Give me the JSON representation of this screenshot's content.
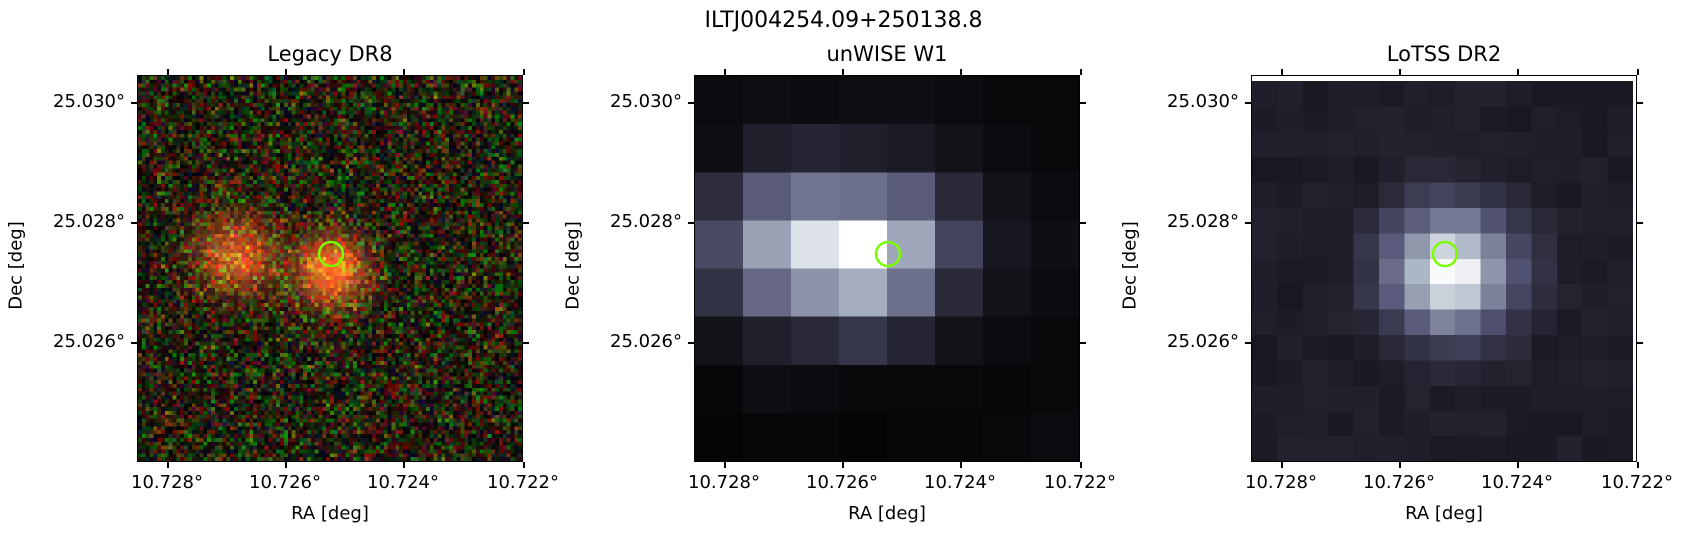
{
  "figure": {
    "title": "ILTJ004254.09+250138.8",
    "panels": [
      {
        "title": "Legacy DR8",
        "xlabel": "RA [deg]",
        "ylabel": "Dec [deg]",
        "xticks": [
          "10.728°",
          "10.726°",
          "10.724°",
          "10.722°"
        ],
        "yticks": [
          "25.030°",
          "25.028°",
          "25.026°"
        ],
        "image_type": "rgb-noise-with-two-red-blobs",
        "marker_color": "#7cfc00"
      },
      {
        "title": "unWISE W1",
        "xlabel": "RA [deg]",
        "ylabel": "Dec [deg]",
        "xticks": [
          "10.728°",
          "10.726°",
          "10.724°",
          "10.722°"
        ],
        "yticks": [
          "25.030°",
          "25.028°",
          "25.026°"
        ],
        "image_type": "bone-colormap-coarse-pixels",
        "marker_color": "#7cfc00"
      },
      {
        "title": "LoTSS DR2",
        "xlabel": "RA [deg]",
        "ylabel": "Dec [deg]",
        "xticks": [
          "10.728°",
          "10.726°",
          "10.724°",
          "10.722°"
        ],
        "yticks": [
          "25.030°",
          "25.028°",
          "25.026°"
        ],
        "image_type": "bone-colormap-fine-pixels",
        "marker_color": "#7cfc00"
      }
    ]
  }
}
